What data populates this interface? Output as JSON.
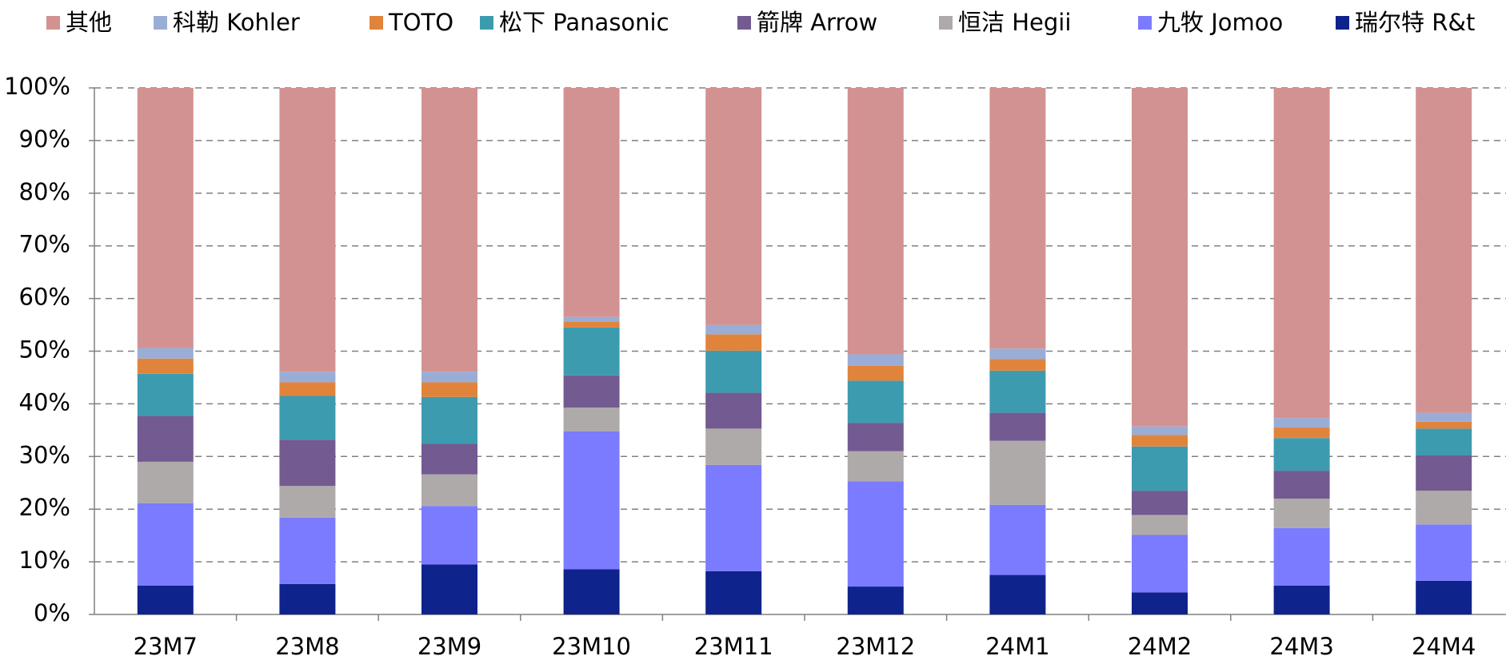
{
  "chart_data": {
    "type": "stacked_bar",
    "categories": [
      "23M7",
      "23M8",
      "23M9",
      "23M10",
      "23M11",
      "23M12",
      "24M1",
      "24M2",
      "24M3",
      "24M4"
    ],
    "series": [
      {
        "name": "其他",
        "color": "#d39292",
        "values": [
          49.4,
          53.9,
          53.9,
          43.5,
          45.0,
          50.6,
          49.5,
          64.3,
          62.7,
          61.7
        ]
      },
      {
        "name": "科勒 Kohler",
        "color": "#9aadd6",
        "values": [
          2.0,
          2.0,
          2.0,
          0.9,
          1.8,
          2.2,
          2.0,
          1.6,
          1.8,
          1.7
        ]
      },
      {
        "name": "TOTO",
        "color": "#e0843c",
        "values": [
          2.9,
          2.6,
          2.8,
          1.1,
          3.1,
          2.8,
          2.2,
          2.2,
          2.0,
          1.3
        ]
      },
      {
        "name": "松下 Panasonic",
        "color": "#3d9bb0",
        "values": [
          8.0,
          8.3,
          8.9,
          9.1,
          8.0,
          8.0,
          8.0,
          8.4,
          6.2,
          5.1
        ]
      },
      {
        "name": "箭牌 Arrow",
        "color": "#735a91",
        "values": [
          8.7,
          8.8,
          5.8,
          6.1,
          6.8,
          5.4,
          5.3,
          4.6,
          5.3,
          6.7
        ]
      },
      {
        "name": "恒洁 Hegii",
        "color": "#aeaaaa",
        "values": [
          7.9,
          6.0,
          6.0,
          4.5,
          6.9,
          5.7,
          12.2,
          3.8,
          5.6,
          6.4
        ]
      },
      {
        "name": "九牧 Jomoo",
        "color": "#7b7bff",
        "values": [
          15.6,
          12.6,
          11.1,
          26.2,
          20.2,
          20.0,
          13.3,
          10.9,
          10.9,
          10.7
        ]
      },
      {
        "name": "瑞尔特 R&t",
        "color": "#0f238c",
        "values": [
          5.5,
          5.8,
          9.5,
          8.6,
          8.2,
          5.3,
          7.5,
          4.2,
          5.5,
          6.4
        ]
      }
    ],
    "ylim": [
      0,
      100
    ],
    "yticks": [
      {
        "value": 0,
        "label": "0%"
      },
      {
        "value": 10,
        "label": "10%"
      },
      {
        "value": 20,
        "label": "20%"
      },
      {
        "value": 30,
        "label": "30%"
      },
      {
        "value": 40,
        "label": "40%"
      },
      {
        "value": 50,
        "label": "50%"
      },
      {
        "value": 60,
        "label": "60%"
      },
      {
        "value": 70,
        "label": "70%"
      },
      {
        "value": 80,
        "label": "80%"
      },
      {
        "value": 90,
        "label": "90%"
      },
      {
        "value": 100,
        "label": "100%"
      }
    ],
    "grid": true,
    "legend": "top"
  }
}
